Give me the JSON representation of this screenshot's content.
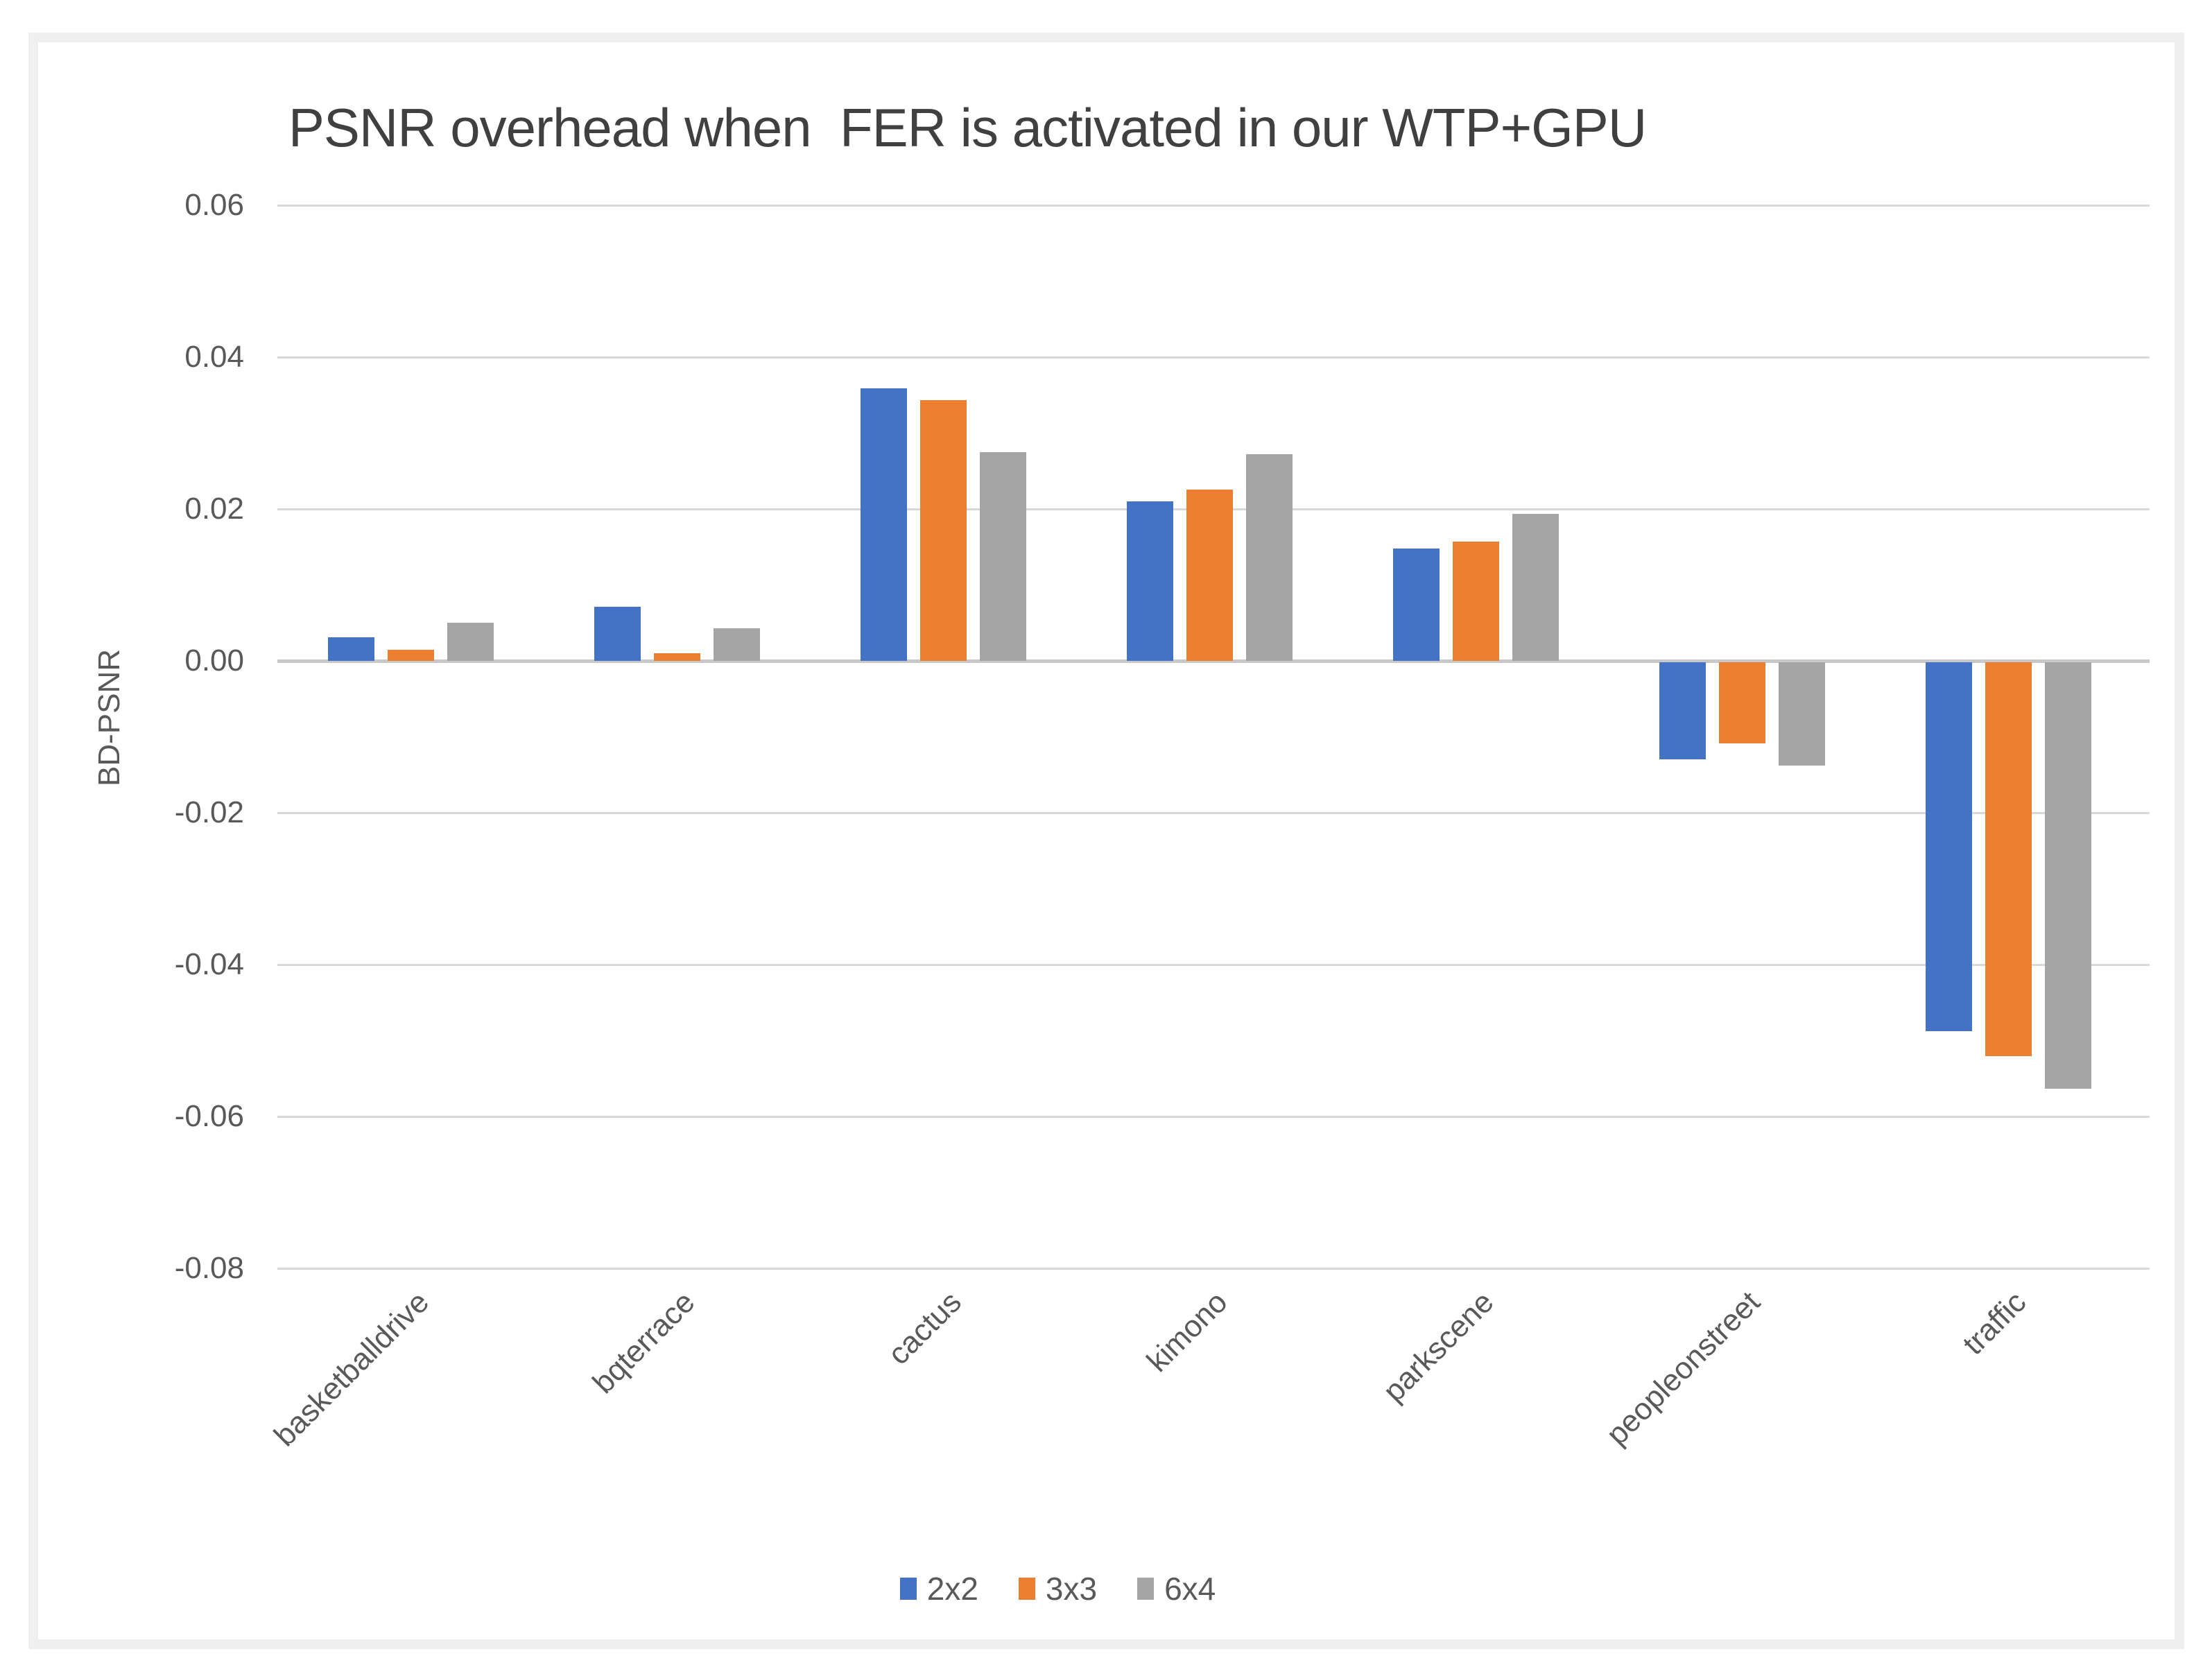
{
  "page": {
    "background": "#ffffff",
    "frame_color": "#efefef",
    "card_color": "#ffffff"
  },
  "chart_data": {
    "type": "bar",
    "title": "PSNR overhead when  FER is activated in our WTP+GPU",
    "ylabel": "BD-PSNR",
    "xlabel": "",
    "categories": [
      "basketballdrive",
      "bqterrace",
      "cactus",
      "kimono",
      "parkscene",
      "peopleonstreet",
      "traffic"
    ],
    "series": [
      {
        "name": "2x2",
        "color": "#4472C4",
        "values": [
          0.0031,
          0.0071,
          0.0359,
          0.021,
          0.0148,
          -0.0128,
          -0.0486
        ]
      },
      {
        "name": "3x3",
        "color": "#ED7D31",
        "values": [
          0.0015,
          0.001,
          0.0343,
          0.0226,
          0.0157,
          -0.0107,
          -0.0519
        ]
      },
      {
        "name": "6x4",
        "color": "#A5A5A5",
        "values": [
          0.005,
          0.0043,
          0.0275,
          0.0272,
          0.0194,
          -0.0136,
          -0.0562
        ]
      }
    ],
    "ylim": [
      -0.08,
      0.06
    ],
    "y_tick_step": 0.02,
    "y_tick_labels": [
      "0.06",
      "0.04",
      "0.02",
      "0.00",
      "-0.02",
      "-0.04",
      "-0.06",
      "-0.08"
    ],
    "grid": true,
    "legend_position": "bottom",
    "title_color": "#404040",
    "text_color": "#595959",
    "gridline_color": "#d9d9d9",
    "zero_line_color": "#c8c8c8"
  }
}
